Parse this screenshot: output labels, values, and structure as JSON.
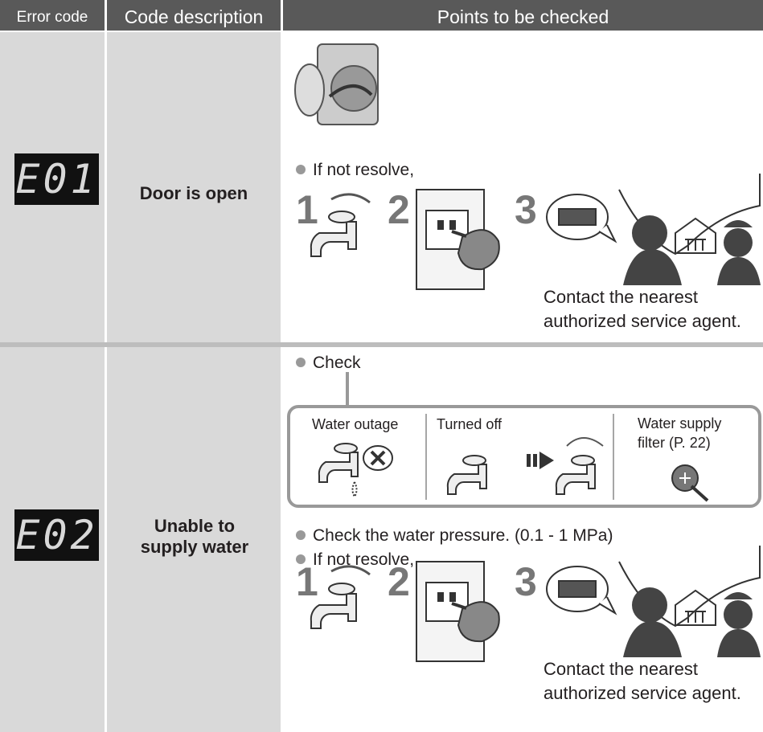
{
  "header": {
    "error_code": "Error code",
    "code_description": "Code description",
    "points": "Points to be checked"
  },
  "rows": [
    {
      "code": "E01",
      "description": "Door is open",
      "bullets": [
        "If not resolve,"
      ],
      "steps": [
        "1",
        "2",
        "3"
      ],
      "contact": "Contact the nearest authorized service agent."
    },
    {
      "code": "E02",
      "description": "Unable to supply water",
      "check": "Check",
      "causes": [
        "Water outage",
        "Turned off",
        "Water supply filter (P. 22)"
      ],
      "bullets": [
        "Check the water pressure. (0.1 - 1 MPa)",
        "If not resolve,"
      ],
      "steps": [
        "1",
        "2",
        "3"
      ],
      "contact": "Contact the nearest authorized service agent."
    }
  ]
}
